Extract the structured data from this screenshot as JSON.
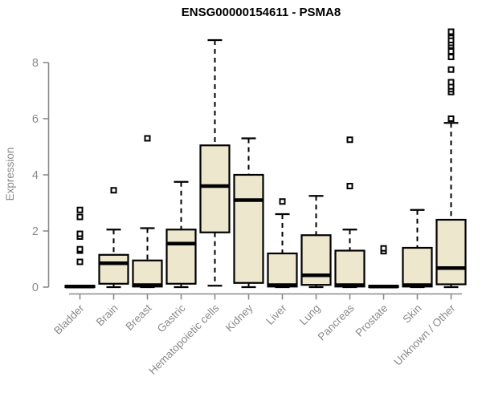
{
  "colors": {
    "background": "#FFFFFF",
    "box_fill": "#EDE7CD",
    "box_border": "#000000",
    "median": "#000000",
    "whisker": "#000000",
    "outlier_fill": "#FFFFFF",
    "axis": "#8A8A8A",
    "axis_text": "#8A8A8A",
    "title": "#000000"
  },
  "chart_data": {
    "type": "boxplot",
    "title": "ENSG00000154611 - PSMA8",
    "ylabel": "Expression",
    "xlabel": "",
    "ylim": [
      0,
      9.2
    ],
    "yticks": [
      0,
      2,
      4,
      6,
      8
    ],
    "grid": false,
    "legend": null,
    "categories": [
      "Bladder",
      "Brain",
      "Breast",
      "Gastric",
      "Hematopoietic cells",
      "Kidney",
      "Liver",
      "Lung",
      "Pancreas",
      "Prostate",
      "Skin",
      "Unknown / Other"
    ],
    "boxes": [
      {
        "category": "Bladder",
        "whisker_low": 0,
        "q1": 0,
        "median": 0.02,
        "q3": 0.05,
        "whisker_high": 0.05,
        "outliers": [
          0.9,
          1.3,
          1.35,
          1.8,
          1.9,
          2.5,
          2.75
        ]
      },
      {
        "category": "Brain",
        "whisker_low": 0,
        "q1": 0.12,
        "median": 0.85,
        "q3": 1.15,
        "whisker_high": 2.05,
        "outliers": [
          3.45
        ]
      },
      {
        "category": "Breast",
        "whisker_low": 0,
        "q1": 0.02,
        "median": 0.07,
        "q3": 0.95,
        "whisker_high": 2.1,
        "outliers": [
          5.3
        ]
      },
      {
        "category": "Gastric",
        "whisker_low": 0,
        "q1": 0.12,
        "median": 1.55,
        "q3": 2.05,
        "whisker_high": 3.75,
        "outliers": []
      },
      {
        "category": "Hematopoietic cells",
        "whisker_low": 0.05,
        "q1": 1.95,
        "median": 3.6,
        "q3": 5.05,
        "whisker_high": 8.8,
        "outliers": []
      },
      {
        "category": "Kidney",
        "whisker_low": 0,
        "q1": 0.15,
        "median": 3.1,
        "q3": 4.0,
        "whisker_high": 5.3,
        "outliers": []
      },
      {
        "category": "Liver",
        "whisker_low": 0,
        "q1": 0.02,
        "median": 0.07,
        "q3": 1.2,
        "whisker_high": 2.6,
        "outliers": [
          3.05
        ]
      },
      {
        "category": "Lung",
        "whisker_low": 0,
        "q1": 0.08,
        "median": 0.42,
        "q3": 1.85,
        "whisker_high": 3.25,
        "outliers": []
      },
      {
        "category": "Pancreas",
        "whisker_low": 0,
        "q1": 0.02,
        "median": 0.07,
        "q3": 1.3,
        "whisker_high": 2.05,
        "outliers": [
          3.6,
          5.25
        ]
      },
      {
        "category": "Prostate",
        "whisker_low": 0,
        "q1": 0,
        "median": 0.02,
        "q3": 0.05,
        "whisker_high": 0.05,
        "outliers": [
          1.28,
          1.38
        ]
      },
      {
        "category": "Skin",
        "whisker_low": 0,
        "q1": 0.02,
        "median": 0.07,
        "q3": 1.4,
        "whisker_high": 2.75,
        "outliers": []
      },
      {
        "category": "Unknown / Other",
        "whisker_low": 0,
        "q1": 0.1,
        "median": 0.68,
        "q3": 2.4,
        "whisker_high": 5.85,
        "outliers": [
          6.0,
          6.95,
          7.05,
          7.15,
          7.3,
          7.75,
          8.2,
          8.4,
          8.6,
          8.7,
          8.8,
          8.95,
          9.05,
          9.1
        ]
      }
    ]
  }
}
